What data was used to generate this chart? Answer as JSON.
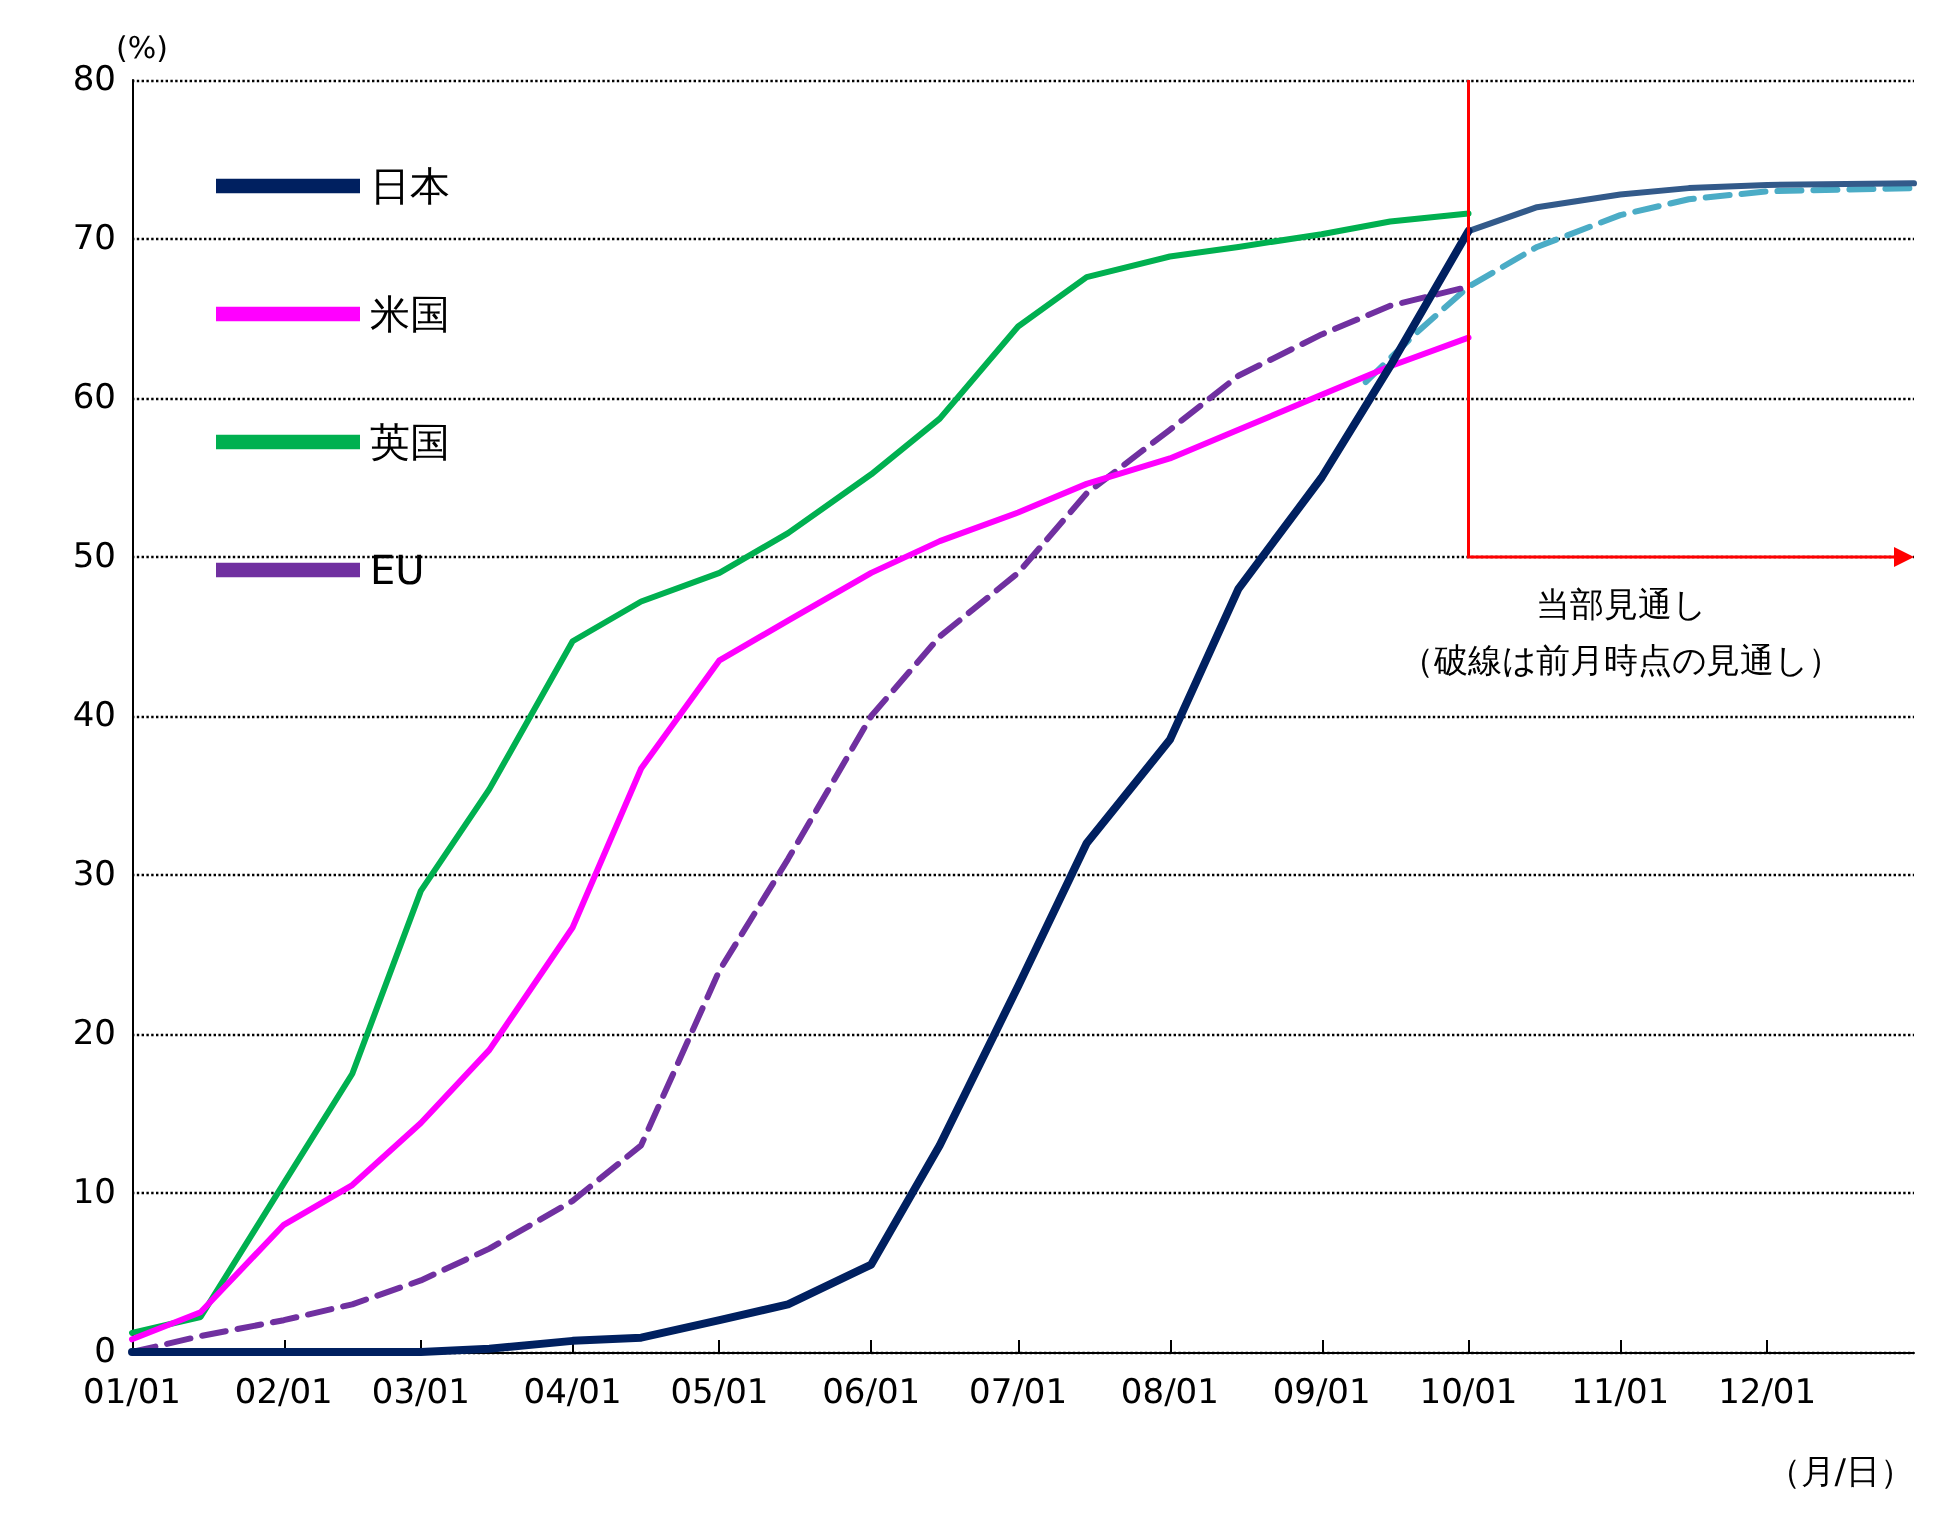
{
  "chart_data": {
    "type": "line",
    "ylabel": "(%)",
    "xlabel": "（月/日）",
    "xlim": [
      "--01-01",
      "--12-31"
    ],
    "xticks": [
      {
        "value": "--01-01",
        "label": "01/01"
      },
      {
        "value": "--02-01",
        "label": "02/01"
      },
      {
        "value": "--03-01",
        "label": "03/01"
      },
      {
        "value": "--04-01",
        "label": "04/01"
      },
      {
        "value": "--05-01",
        "label": "05/01"
      },
      {
        "value": "--06-01",
        "label": "06/01"
      },
      {
        "value": "--07-01",
        "label": "07/01"
      },
      {
        "value": "--08-01",
        "label": "08/01"
      },
      {
        "value": "--09-01",
        "label": "09/01"
      },
      {
        "value": "--10-01",
        "label": "10/01"
      },
      {
        "value": "--11-01",
        "label": "11/01"
      },
      {
        "value": "--12-01",
        "label": "12/01"
      }
    ],
    "ylim": [
      0,
      80
    ],
    "yticks": [
      0,
      10,
      20,
      30,
      40,
      50,
      60,
      70,
      80
    ],
    "grid": "y",
    "legend": "top left",
    "marker": "none",
    "x": [
      "--01-01",
      "--01-15",
      "--02-01",
      "--02-15",
      "--03-01",
      "--03-15",
      "--04-01",
      "--04-15",
      "--05-01",
      "--05-15",
      "--06-01",
      "--06-15",
      "--07-01",
      "--07-15",
      "--08-01",
      "--08-15",
      "--09-01",
      "--09-15",
      "--10-01"
    ],
    "series": [
      {
        "name": "日本",
        "color": "#002060",
        "line_style": "solid",
        "values": [
          0,
          0,
          0,
          0,
          0,
          0.2,
          0.7,
          0.9,
          2,
          3,
          5.5,
          13,
          23,
          32,
          38.5,
          48,
          55,
          62,
          70.5
        ]
      },
      {
        "name": "米国",
        "color": "#ff00ff",
        "line_style": "solid",
        "values": [
          0.8,
          2.5,
          8,
          10.5,
          14.4,
          19,
          26.7,
          36.7,
          43.5,
          46,
          49,
          51,
          52.8,
          54.6,
          56.2,
          58,
          60.2,
          62,
          63.8
        ]
      },
      {
        "name": "英国",
        "color": "#00b050",
        "line_style": "solid",
        "values": [
          1.2,
          2.2,
          10.6,
          17.5,
          29,
          35.4,
          44.7,
          47.2,
          49,
          51.5,
          55.2,
          58.7,
          64.5,
          67.6,
          68.9,
          69.5,
          70.3,
          71.1,
          71.6
        ]
      },
      {
        "name": "EU",
        "color": "#7030a0",
        "line_style": "dashed",
        "values": [
          0,
          1,
          2,
          3,
          4.5,
          6.5,
          9.5,
          13,
          24,
          31,
          40,
          45,
          49,
          54,
          58,
          61.4,
          64,
          65.8,
          67
        ]
      },
      {
        "color": "#335a8a",
        "line_style": "solid",
        "x": [
          "--10-01",
          "--10-15",
          "--11-01",
          "--11-15",
          "--12-01",
          "--12-31"
        ],
        "values": [
          70.5,
          72,
          72.8,
          73.2,
          73.4,
          73.5
        ]
      },
      {
        "color": "#4bacc6",
        "line_style": "dashed",
        "x": [
          "--09-10",
          "--09-20",
          "--10-01",
          "--10-15",
          "--11-01",
          "--11-15",
          "--12-01",
          "--12-31"
        ],
        "values": [
          61,
          64,
          67,
          69.5,
          71.5,
          72.5,
          73,
          73.2
        ]
      }
    ],
    "annotations": [
      "当部見通し",
      "（破線は前月時点の見通し）"
    ]
  }
}
